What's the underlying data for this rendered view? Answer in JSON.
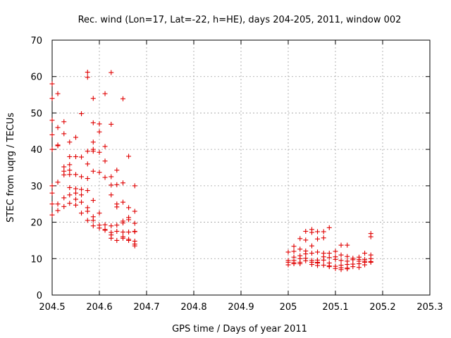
{
  "chart_data": {
    "type": "scatter",
    "title": "Rec. wind (Lon=17, Lat=-22, h=HE), days 204-205, 2011, window 002",
    "xlabel": "GPS time / Days of year 2011",
    "ylabel": "STEC from uqrg / TECUs",
    "xlim": [
      204.5,
      205.3
    ],
    "ylim": [
      0,
      70
    ],
    "xticks": [
      "204.5",
      "204.6",
      "204.7",
      "204.8",
      "204.9",
      "205",
      "205.1",
      "205.2",
      "205.3"
    ],
    "yticks": [
      "0",
      "10",
      "20",
      "30",
      "40",
      "50",
      "60",
      "70"
    ],
    "grid": true,
    "marker": "plus",
    "color": "#e00000",
    "series": [
      {
        "points": [
          [
            204.5,
            58.0
          ],
          [
            204.5,
            54.0
          ],
          [
            204.5,
            48.0
          ],
          [
            204.5,
            44.0
          ],
          [
            204.5,
            40.0
          ],
          [
            204.5,
            30.0
          ],
          [
            204.5,
            28.0
          ],
          [
            204.5,
            25.0
          ],
          [
            204.5,
            22.0
          ],
          [
            204.512,
            55.3
          ],
          [
            204.512,
            46.0
          ],
          [
            204.512,
            41.2
          ],
          [
            204.512,
            41.0
          ],
          [
            204.512,
            31.0
          ],
          [
            204.512,
            25.0
          ],
          [
            204.512,
            23.2
          ],
          [
            204.525,
            47.6
          ],
          [
            204.525,
            44.3
          ],
          [
            204.525,
            35.2
          ],
          [
            204.525,
            34.0
          ],
          [
            204.525,
            33.0
          ],
          [
            204.525,
            26.7
          ],
          [
            204.525,
            24.3
          ],
          [
            204.537,
            42.0
          ],
          [
            204.537,
            38.0
          ],
          [
            204.537,
            35.8
          ],
          [
            204.537,
            34.3
          ],
          [
            204.537,
            33.1
          ],
          [
            204.537,
            29.5
          ],
          [
            204.537,
            27.5
          ],
          [
            204.537,
            25.2
          ],
          [
            204.55,
            43.3
          ],
          [
            204.55,
            38.0
          ],
          [
            204.55,
            33.1
          ],
          [
            204.55,
            29.2
          ],
          [
            204.55,
            28.0
          ],
          [
            204.55,
            26.3
          ],
          [
            204.55,
            24.7
          ],
          [
            204.562,
            49.8
          ],
          [
            204.562,
            37.9
          ],
          [
            204.562,
            32.5
          ],
          [
            204.562,
            29.0
          ],
          [
            204.562,
            27.5
          ],
          [
            204.562,
            25.5
          ],
          [
            204.562,
            22.5
          ],
          [
            204.575,
            61.2
          ],
          [
            204.575,
            59.8
          ],
          [
            204.575,
            39.5
          ],
          [
            204.575,
            36.0
          ],
          [
            204.575,
            32.0
          ],
          [
            204.575,
            28.7
          ],
          [
            204.575,
            24.0
          ],
          [
            204.575,
            23.0
          ],
          [
            204.575,
            20.5
          ],
          [
            204.587,
            54.0
          ],
          [
            204.587,
            47.3
          ],
          [
            204.587,
            42.0
          ],
          [
            204.587,
            40.0
          ],
          [
            204.587,
            39.5
          ],
          [
            204.587,
            34.0
          ],
          [
            204.587,
            26.0
          ],
          [
            204.587,
            21.5
          ],
          [
            204.587,
            20.5
          ],
          [
            204.587,
            19.0
          ],
          [
            204.6,
            47.0
          ],
          [
            204.6,
            44.8
          ],
          [
            204.6,
            39.2
          ],
          [
            204.6,
            33.7
          ],
          [
            204.6,
            22.5
          ],
          [
            204.6,
            19.2
          ],
          [
            204.6,
            18.4
          ],
          [
            204.612,
            55.3
          ],
          [
            204.612,
            40.8
          ],
          [
            204.612,
            36.8
          ],
          [
            204.612,
            32.3
          ],
          [
            204.612,
            19.3
          ],
          [
            204.612,
            18.0
          ],
          [
            204.612,
            17.8
          ],
          [
            204.625,
            61.1
          ],
          [
            204.625,
            46.9
          ],
          [
            204.625,
            32.5
          ],
          [
            204.625,
            30.2
          ],
          [
            204.625,
            27.5
          ],
          [
            204.625,
            19.0
          ],
          [
            204.625,
            17.2
          ],
          [
            204.625,
            16.5
          ],
          [
            204.625,
            15.6
          ],
          [
            204.637,
            34.3
          ],
          [
            204.637,
            30.3
          ],
          [
            204.637,
            25.0
          ],
          [
            204.637,
            24.2
          ],
          [
            204.637,
            19.2
          ],
          [
            204.637,
            17.5
          ],
          [
            204.637,
            15.0
          ],
          [
            204.65,
            53.9
          ],
          [
            204.65,
            30.8
          ],
          [
            204.65,
            25.5
          ],
          [
            204.65,
            20.3
          ],
          [
            204.65,
            19.8
          ],
          [
            204.65,
            17.3
          ],
          [
            204.65,
            16.0
          ],
          [
            204.65,
            15.6
          ],
          [
            204.662,
            38.1
          ],
          [
            204.662,
            24.0
          ],
          [
            204.662,
            21.3
          ],
          [
            204.662,
            20.7
          ],
          [
            204.662,
            17.3
          ],
          [
            204.662,
            15.3
          ],
          [
            204.662,
            15.0
          ],
          [
            204.675,
            30.0
          ],
          [
            204.675,
            23.0
          ],
          [
            204.675,
            19.7
          ],
          [
            204.675,
            17.5
          ],
          [
            204.675,
            17.4
          ],
          [
            204.675,
            14.8
          ],
          [
            204.675,
            14.0
          ],
          [
            204.675,
            13.5
          ],
          [
            205.0,
            11.8
          ],
          [
            205.0,
            9.5
          ],
          [
            205.0,
            9.0
          ],
          [
            205.0,
            8.3
          ],
          [
            205.012,
            13.4
          ],
          [
            205.012,
            12.0
          ],
          [
            205.012,
            10.4
          ],
          [
            205.012,
            9.5
          ],
          [
            205.012,
            8.9
          ],
          [
            205.012,
            8.6
          ],
          [
            205.025,
            15.5
          ],
          [
            205.025,
            12.6
          ],
          [
            205.025,
            10.8
          ],
          [
            205.025,
            10.0
          ],
          [
            205.025,
            9.0
          ],
          [
            205.025,
            8.6
          ],
          [
            205.037,
            17.5
          ],
          [
            205.037,
            15.1
          ],
          [
            205.037,
            12.1
          ],
          [
            205.037,
            11.3
          ],
          [
            205.037,
            10.1
          ],
          [
            205.037,
            9.4
          ],
          [
            205.05,
            18.0
          ],
          [
            205.05,
            17.2
          ],
          [
            205.05,
            13.5
          ],
          [
            205.05,
            11.5
          ],
          [
            205.05,
            9.5
          ],
          [
            205.05,
            9.0
          ],
          [
            205.05,
            8.4
          ],
          [
            205.062,
            17.4
          ],
          [
            205.062,
            15.4
          ],
          [
            205.062,
            11.8
          ],
          [
            205.062,
            9.6
          ],
          [
            205.062,
            9.0
          ],
          [
            205.062,
            8.8
          ],
          [
            205.062,
            8.1
          ],
          [
            205.075,
            17.4
          ],
          [
            205.075,
            15.7
          ],
          [
            205.075,
            11.5
          ],
          [
            205.075,
            10.5
          ],
          [
            205.075,
            9.6
          ],
          [
            205.075,
            8.2
          ],
          [
            205.087,
            18.5
          ],
          [
            205.087,
            11.5
          ],
          [
            205.087,
            10.3
          ],
          [
            205.087,
            8.8
          ],
          [
            205.087,
            8.0
          ],
          [
            205.087,
            7.8
          ],
          [
            205.1,
            12.0
          ],
          [
            205.1,
            10.5
          ],
          [
            205.1,
            9.8
          ],
          [
            205.1,
            7.9
          ],
          [
            205.1,
            7.3
          ],
          [
            205.112,
            13.7
          ],
          [
            205.112,
            11.0
          ],
          [
            205.112,
            9.5
          ],
          [
            205.112,
            8.2
          ],
          [
            205.112,
            7.5
          ],
          [
            205.112,
            7.0
          ],
          [
            205.125,
            13.7
          ],
          [
            205.125,
            10.6
          ],
          [
            205.125,
            9.3
          ],
          [
            205.125,
            8.4
          ],
          [
            205.125,
            7.4
          ],
          [
            205.125,
            7.2
          ],
          [
            205.137,
            10.1
          ],
          [
            205.137,
            9.7
          ],
          [
            205.137,
            8.5
          ],
          [
            205.137,
            7.8
          ],
          [
            205.15,
            10.4
          ],
          [
            205.15,
            9.8
          ],
          [
            205.15,
            9.3
          ],
          [
            205.15,
            8.6
          ],
          [
            205.15,
            7.6
          ],
          [
            205.162,
            11.5
          ],
          [
            205.162,
            9.8
          ],
          [
            205.162,
            9.3
          ],
          [
            205.162,
            9.0
          ],
          [
            205.162,
            8.3
          ],
          [
            205.175,
            16.9
          ],
          [
            205.175,
            16.0
          ],
          [
            205.175,
            11.0
          ],
          [
            205.175,
            10.0
          ],
          [
            205.175,
            9.2
          ],
          [
            205.175,
            9.0
          ]
        ]
      }
    ]
  }
}
